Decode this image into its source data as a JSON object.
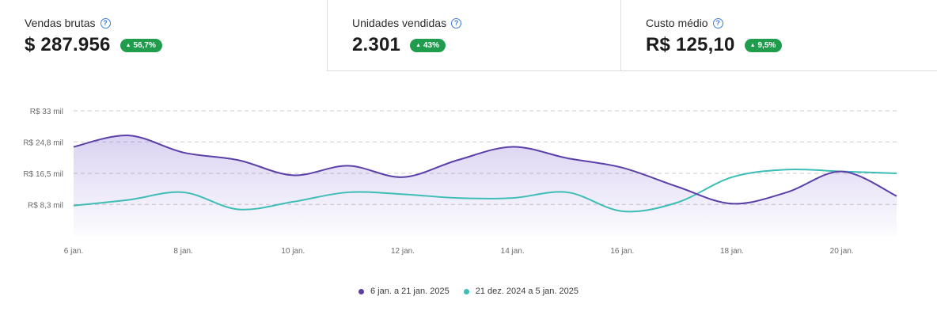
{
  "kpis": [
    {
      "label": "Vendas brutas",
      "value": "$ 287.956",
      "delta": "56,7%"
    },
    {
      "label": "Unidades vendidas",
      "value": "2.301",
      "delta": "43%"
    },
    {
      "label": "Custo médio",
      "value": "R$ 125,10",
      "delta": "9,5%"
    }
  ],
  "colors": {
    "current": "#5b3fa8",
    "previous": "#3dbdb5",
    "badge": "#1f9d4d"
  },
  "legend": {
    "current": "6 jan. a 21 jan. 2025",
    "previous": "21 dez. 2024 a 5 jan. 2025"
  },
  "chart_data": {
    "type": "area",
    "x": [
      6,
      7,
      8,
      9,
      10,
      11,
      12,
      13,
      14,
      15,
      16,
      17,
      18,
      19,
      20,
      21
    ],
    "x_tick_labels": [
      "6 jan.",
      "8 jan.",
      "10 jan.",
      "12 jan.",
      "14 jan.",
      "16 jan.",
      "18 jan.",
      "20 jan."
    ],
    "x_ticks": [
      6,
      8,
      10,
      12,
      14,
      16,
      18,
      20
    ],
    "y_tick_labels": [
      "R$ 33 mil",
      "R$ 24,8 mil",
      "R$ 16,5 mil",
      "R$ 8,3 mil"
    ],
    "y_ticks": [
      33,
      24.8,
      16.5,
      8.3
    ],
    "ylim": [
      0,
      33
    ],
    "grid": true,
    "series": [
      {
        "name": "6 jan. a 21 jan. 2025",
        "values": [
          23.5,
          26.5,
          22,
          20,
          16,
          18.5,
          15.5,
          20,
          23.5,
          20.5,
          18,
          13,
          8.5,
          11.5,
          17,
          10.5
        ]
      },
      {
        "name": "21 dez. 2024 a 5 jan. 2025",
        "values": [
          8,
          9.5,
          11.5,
          7,
          9,
          11.5,
          11,
          10,
          10,
          11.5,
          6.5,
          8.8,
          15.5,
          17.5,
          17,
          16.5
        ]
      }
    ]
  }
}
